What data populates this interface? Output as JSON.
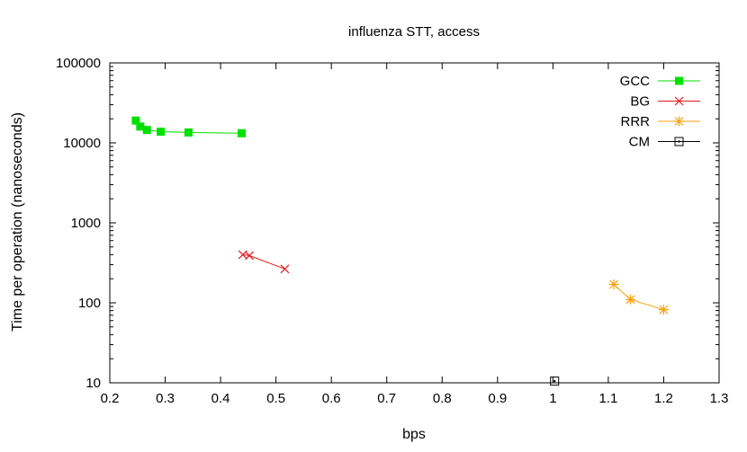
{
  "chart_data": {
    "type": "scatter",
    "title": "influenza STT, access",
    "xlabel": "bps",
    "ylabel": "Time per operation (nanoseconds)",
    "xlim": [
      0.2,
      1.3
    ],
    "ylim": [
      10,
      100000
    ],
    "y_scale": "log",
    "x_ticks": [
      {
        "value": 0.2,
        "label": "0.2"
      },
      {
        "value": 0.3,
        "label": "0.3"
      },
      {
        "value": 0.4,
        "label": "0.4"
      },
      {
        "value": 0.5,
        "label": "0.5"
      },
      {
        "value": 0.6,
        "label": "0.6"
      },
      {
        "value": 0.7,
        "label": "0.7"
      },
      {
        "value": 0.8,
        "label": "0.8"
      },
      {
        "value": 0.9,
        "label": "0.9"
      },
      {
        "value": 1.0,
        "label": "1"
      },
      {
        "value": 1.1,
        "label": "1.1"
      },
      {
        "value": 1.2,
        "label": "1.2"
      },
      {
        "value": 1.3,
        "label": "1.3"
      }
    ],
    "y_ticks": [
      {
        "value": 10,
        "label": "10"
      },
      {
        "value": 100,
        "label": "100"
      },
      {
        "value": 1000,
        "label": "1000"
      },
      {
        "value": 10000,
        "label": "10000"
      },
      {
        "value": 100000,
        "label": "100000"
      }
    ],
    "grid": false,
    "legend_position": "top-right",
    "series": [
      {
        "name": "GCC",
        "color": "#00e000",
        "marker": "filled-square",
        "line": true,
        "points": [
          {
            "x": 0.247,
            "y": 19000
          },
          {
            "x": 0.255,
            "y": 16000
          },
          {
            "x": 0.267,
            "y": 14500
          },
          {
            "x": 0.292,
            "y": 13800
          },
          {
            "x": 0.342,
            "y": 13500
          },
          {
            "x": 0.438,
            "y": 13200
          }
        ]
      },
      {
        "name": "BG",
        "color": "#e41a1c",
        "marker": "cross",
        "line": true,
        "points": [
          {
            "x": 0.44,
            "y": 400
          },
          {
            "x": 0.452,
            "y": 390
          },
          {
            "x": 0.516,
            "y": 265
          }
        ]
      },
      {
        "name": "RRR",
        "color": "#f5a10a",
        "marker": "star",
        "line": true,
        "points": [
          {
            "x": 1.11,
            "y": 170
          },
          {
            "x": 1.14,
            "y": 110
          },
          {
            "x": 1.2,
            "y": 82
          }
        ]
      },
      {
        "name": "CM",
        "color": "#000000",
        "marker": "dotted-square",
        "line": true,
        "points": [
          {
            "x": 1.003,
            "y": 10.5
          }
        ]
      }
    ]
  }
}
